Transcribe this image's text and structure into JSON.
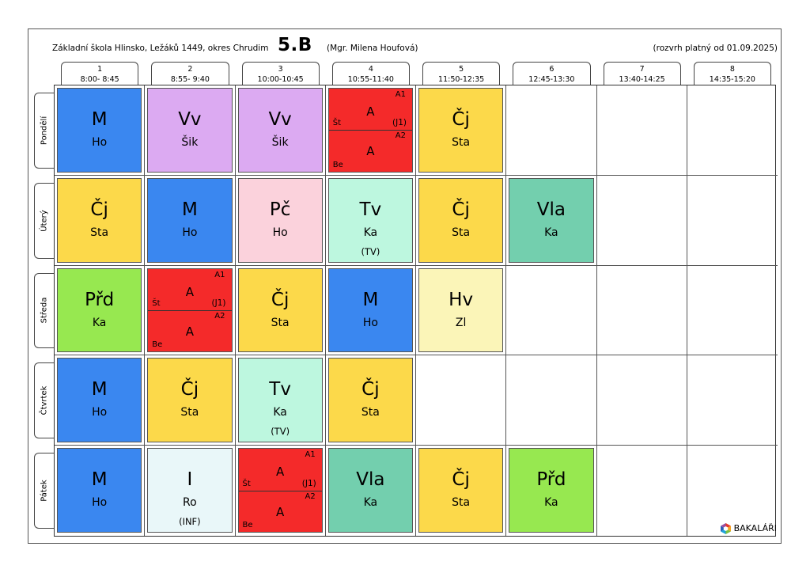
{
  "header": {
    "school": "Základní škola Hlinsko, Ležáků 1449, okres Chrudim",
    "class": "5.B",
    "teacher": "(Mgr. Milena Houfová)",
    "valid": "(rozvrh platný od 01.09.2025)"
  },
  "periods": [
    {
      "num": "1",
      "time": "8:00- 8:45"
    },
    {
      "num": "2",
      "time": "8:55- 9:40"
    },
    {
      "num": "3",
      "time": "10:00-10:45"
    },
    {
      "num": "4",
      "time": "10:55-11:40"
    },
    {
      "num": "5",
      "time": "11:50-12:35"
    },
    {
      "num": "6",
      "time": "12:45-13:30"
    },
    {
      "num": "7",
      "time": "13:40-14:25"
    },
    {
      "num": "8",
      "time": "14:35-15:20"
    }
  ],
  "days": [
    "Pondělí",
    "Úterý",
    "Středa",
    "Čtvrtek",
    "Pátek"
  ],
  "colors": {
    "M": "#3a87f0",
    "Vv": "#dcaaf2",
    "Pč": "#fbd2dc",
    "Čj": "#fcd94a",
    "A": "#f42a2a",
    "Tv": "#bdf7df",
    "Vla": "#73cfae",
    "Přd": "#97e850",
    "Hv": "#fbf5b8",
    "I": "#e9f7f9"
  },
  "schedule": [
    [
      {
        "subject": "M",
        "teacher": "Ho"
      },
      {
        "subject": "Vv",
        "teacher": "Šik"
      },
      {
        "subject": "Vv",
        "teacher": "Šik"
      },
      {
        "split": true,
        "group1": "A1",
        "subject1": "A",
        "teacher1": "Št",
        "room1": "(J1)",
        "group2": "A2",
        "subject2": "A",
        "teacher2": "Be"
      },
      {
        "subject": "Čj",
        "teacher": "Sta"
      },
      null,
      null,
      null
    ],
    [
      {
        "subject": "Čj",
        "teacher": "Sta"
      },
      {
        "subject": "M",
        "teacher": "Ho"
      },
      {
        "subject": "Pč",
        "teacher": "Ho"
      },
      {
        "subject": "Tv",
        "teacher": "Ka",
        "room": "(TV)"
      },
      {
        "subject": "Čj",
        "teacher": "Sta"
      },
      {
        "subject": "Vla",
        "teacher": "Ka"
      },
      null,
      null
    ],
    [
      {
        "subject": "Přd",
        "teacher": "Ka"
      },
      {
        "split": true,
        "group1": "A1",
        "subject1": "A",
        "teacher1": "Št",
        "room1": "(J1)",
        "group2": "A2",
        "subject2": "A",
        "teacher2": "Be"
      },
      {
        "subject": "Čj",
        "teacher": "Sta"
      },
      {
        "subject": "M",
        "teacher": "Ho"
      },
      {
        "subject": "Hv",
        "teacher": "Zl"
      },
      null,
      null,
      null
    ],
    [
      {
        "subject": "M",
        "teacher": "Ho"
      },
      {
        "subject": "Čj",
        "teacher": "Sta"
      },
      {
        "subject": "Tv",
        "teacher": "Ka",
        "room": "(TV)"
      },
      {
        "subject": "Čj",
        "teacher": "Sta"
      },
      null,
      null,
      null,
      null
    ],
    [
      {
        "subject": "M",
        "teacher": "Ho"
      },
      {
        "subject": "I",
        "teacher": "Ro",
        "room": "(INF)"
      },
      {
        "split": true,
        "group1": "A1",
        "subject1": "A",
        "teacher1": "Št",
        "room1": "(J1)",
        "group2": "A2",
        "subject2": "A",
        "teacher2": "Be"
      },
      {
        "subject": "Vla",
        "teacher": "Ka"
      },
      {
        "subject": "Čj",
        "teacher": "Sta"
      },
      {
        "subject": "Přd",
        "teacher": "Ka"
      },
      null,
      null
    ]
  ],
  "logo": {
    "text": "BAKALÁŘI",
    "icon": "bakalari-logo-icon"
  }
}
